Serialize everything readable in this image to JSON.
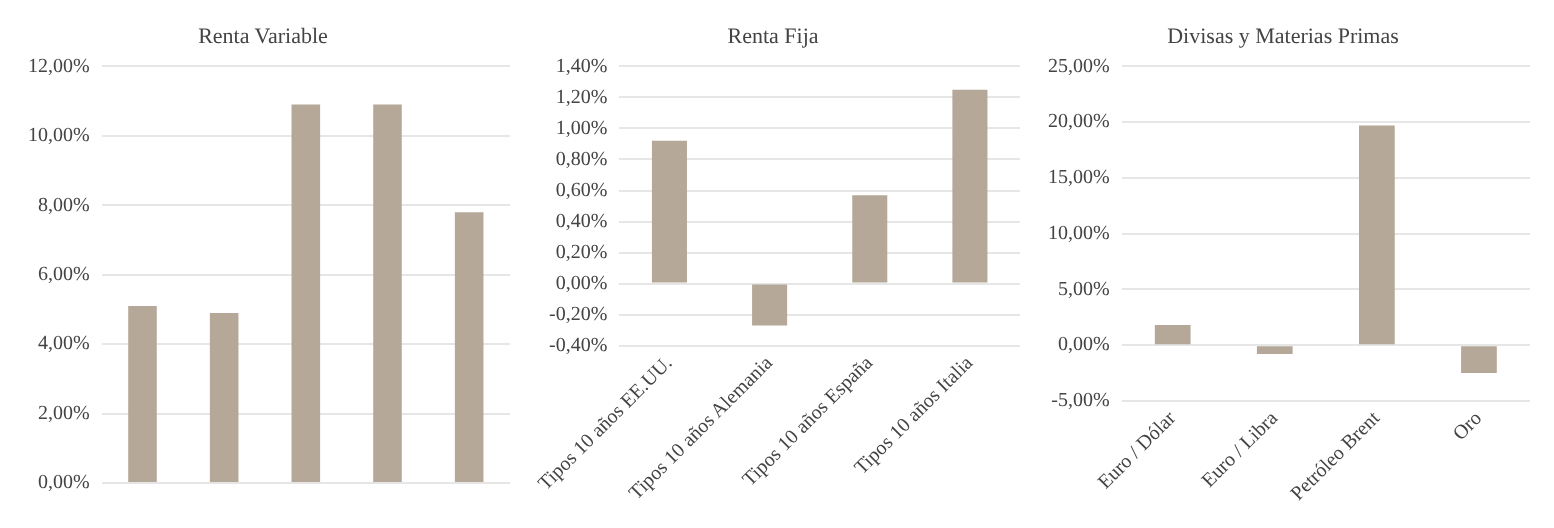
{
  "chart_data": [
    {
      "type": "bar",
      "title": "Renta Variable",
      "categories": [
        null,
        null,
        null,
        null,
        null
      ],
      "values": [
        5.1,
        4.9,
        10.9,
        10.9,
        7.8
      ],
      "color": "#b5a898",
      "ylim": [
        0,
        12
      ],
      "yticks": [
        {
          "value": 0,
          "label": "0,00%"
        },
        {
          "value": 2,
          "label": "2,00%"
        },
        {
          "value": 4,
          "label": "4,00%"
        },
        {
          "value": 6,
          "label": "6,00%"
        },
        {
          "value": 8,
          "label": "8,00%"
        },
        {
          "value": 10,
          "label": "10,00%"
        },
        {
          "value": 12,
          "label": "12,00%"
        }
      ],
      "grid": "y"
    },
    {
      "type": "bar",
      "title": "Renta Fija",
      "categories": [
        "Tipos 10 años EE.UU.",
        "Tipos 10 años Alemania",
        "Tipos 10 años España",
        "Tipos 10 años Italia"
      ],
      "values": [
        0.92,
        -0.27,
        0.57,
        1.25
      ],
      "color": "#b5a898",
      "ylim": [
        -0.4,
        1.4
      ],
      "yticks": [
        {
          "value": -0.4,
          "label": "-0,40%"
        },
        {
          "value": -0.2,
          "label": "-0,20%"
        },
        {
          "value": 0,
          "label": "0,00%"
        },
        {
          "value": 0.2,
          "label": "0,20%"
        },
        {
          "value": 0.4,
          "label": "0,40%"
        },
        {
          "value": 0.6,
          "label": "0,60%"
        },
        {
          "value": 0.8,
          "label": "0,80%"
        },
        {
          "value": 1,
          "label": "1,00%"
        },
        {
          "value": 1.2,
          "label": "1,20%"
        },
        {
          "value": 1.4,
          "label": "1,40%"
        }
      ],
      "grid": "y"
    },
    {
      "type": "bar",
      "title": "Divisas y Materias Primas",
      "categories": [
        "Euro / Dólar",
        "Euro / Libra",
        "Petróleo Brent",
        "Oro"
      ],
      "values": [
        1.8,
        -0.8,
        19.7,
        -2.5
      ],
      "color": "#b5a898",
      "ylim": [
        -5,
        25
      ],
      "yticks": [
        {
          "value": -5,
          "label": "-5,00%"
        },
        {
          "value": 0,
          "label": "0,00%"
        },
        {
          "value": 5,
          "label": "5,00%"
        },
        {
          "value": 10,
          "label": "10,00%"
        },
        {
          "value": 15,
          "label": "15,00%"
        },
        {
          "value": 20,
          "label": "20,00%"
        },
        {
          "value": 25,
          "label": "25,00%"
        }
      ],
      "grid": "y"
    }
  ]
}
